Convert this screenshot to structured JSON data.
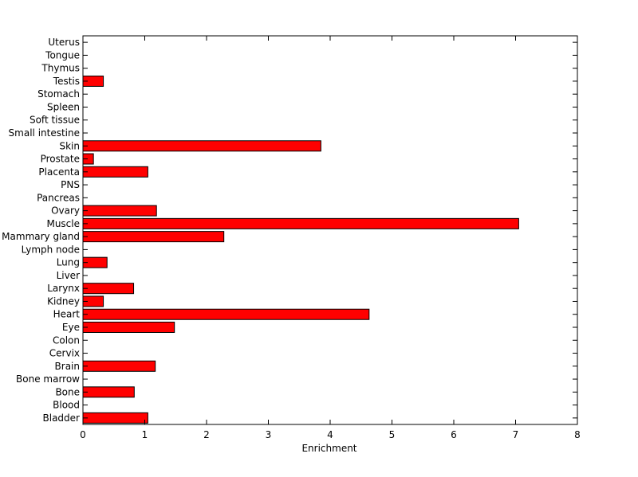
{
  "chart_data": {
    "type": "bar",
    "orientation": "horizontal",
    "categories": [
      "Bladder",
      "Blood",
      "Bone",
      "Bone marrow",
      "Brain",
      "Cervix",
      "Colon",
      "Eye",
      "Heart",
      "Kidney",
      "Larynx",
      "Liver",
      "Lung",
      "Lymph node",
      "Mammary gland",
      "Muscle",
      "Ovary",
      "Pancreas",
      "PNS",
      "Placenta",
      "Prostate",
      "Skin",
      "Small intestine",
      "Soft tissue",
      "Spleen",
      "Stomach",
      "Testis",
      "Thymus",
      "Tongue",
      "Uterus"
    ],
    "values": [
      1.05,
      0,
      0.83,
      0,
      1.17,
      0,
      0,
      1.48,
      4.63,
      0.33,
      0.82,
      0,
      0.39,
      0,
      2.28,
      7.05,
      1.19,
      0,
      0,
      1.05,
      0.17,
      3.85,
      0,
      0,
      0,
      0,
      0.33,
      0,
      0,
      0
    ],
    "xlabel": "Enrichment",
    "ylabel": "",
    "title": "",
    "xlim": [
      0,
      8
    ],
    "xticks": [
      0,
      1,
      2,
      3,
      4,
      5,
      6,
      7,
      8
    ],
    "bar_color": "#ff0000",
    "bar_edge_color": "#000000",
    "grid": false
  }
}
